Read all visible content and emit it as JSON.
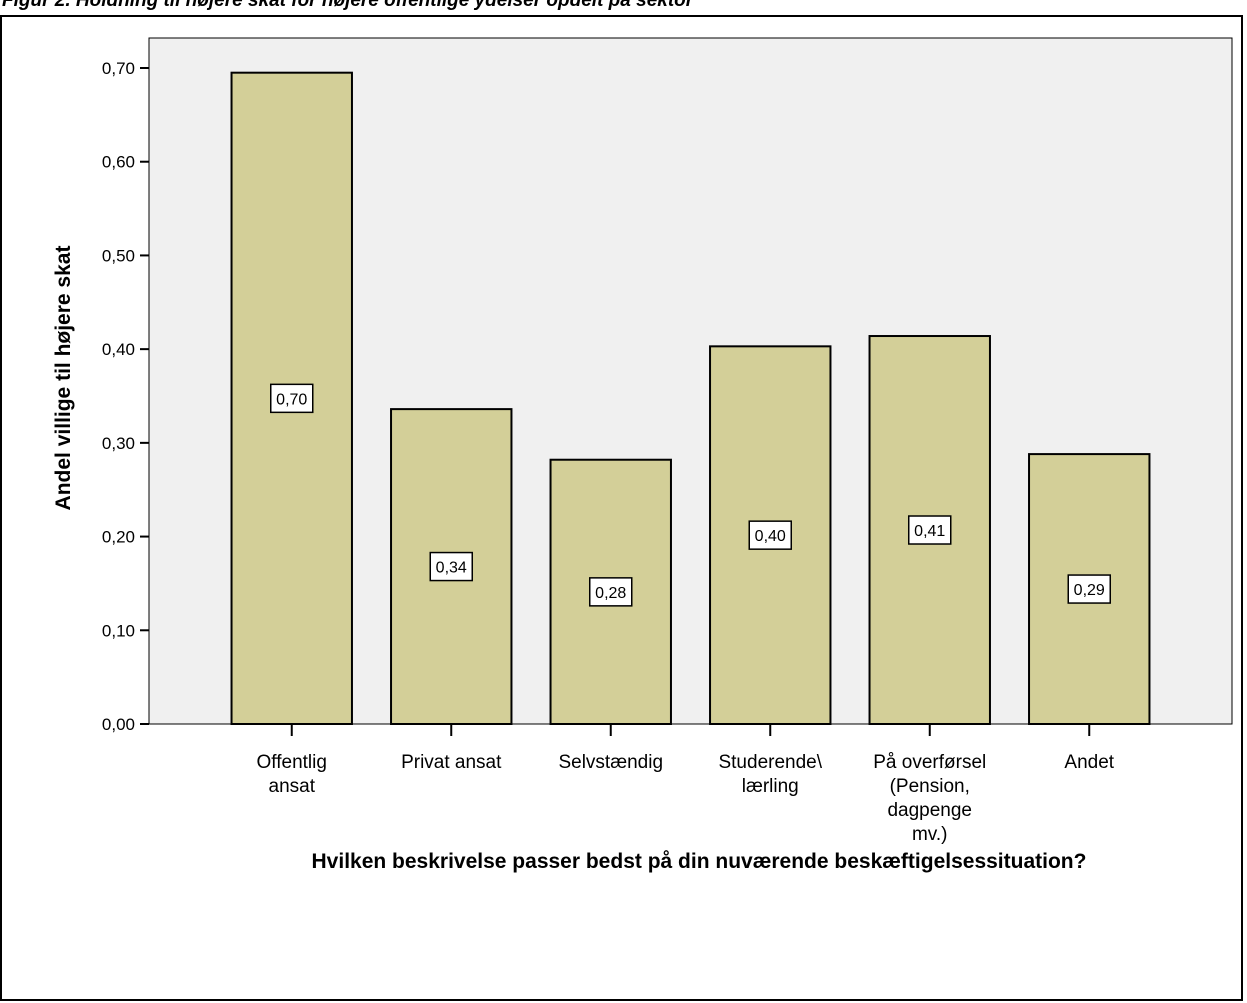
{
  "caption": "Figur 2. Holdning til højere skat for højere offentlige ydelser opdelt på sektor",
  "chart_data": {
    "type": "bar",
    "categories": [
      [
        "Offentlig",
        "ansat"
      ],
      [
        "Privat ansat"
      ],
      [
        "Selvstændig"
      ],
      [
        "Studerende\\",
        "lærling"
      ],
      [
        "På overførsel",
        "(Pension,",
        "dagpenge",
        "mv.)"
      ],
      [
        "Andet"
      ]
    ],
    "values": [
      0.695,
      0.336,
      0.282,
      0.403,
      0.414,
      0.288
    ],
    "data_labels": [
      "0,70",
      "0,34",
      "0,28",
      "0,40",
      "0,41",
      "0,29"
    ],
    "xlabel": "Hvilken beskrivelse passer bedst på din nuværende beskæftigelsessituation?",
    "ylabel": "Andel villige til højere skat",
    "ylim": [
      0,
      0.7
    ],
    "yticks": [
      0,
      0.1,
      0.2,
      0.3,
      0.4,
      0.5,
      0.6,
      0.7
    ],
    "ytick_labels": [
      "0,00",
      "0,10",
      "0,20",
      "0,30",
      "0,40",
      "0,50",
      "0,60",
      "0,70"
    ],
    "grid": false,
    "colors": {
      "bar": "#d3cf98",
      "bar_stroke": "#000000",
      "plot_bg": "#f0f0f0"
    }
  }
}
